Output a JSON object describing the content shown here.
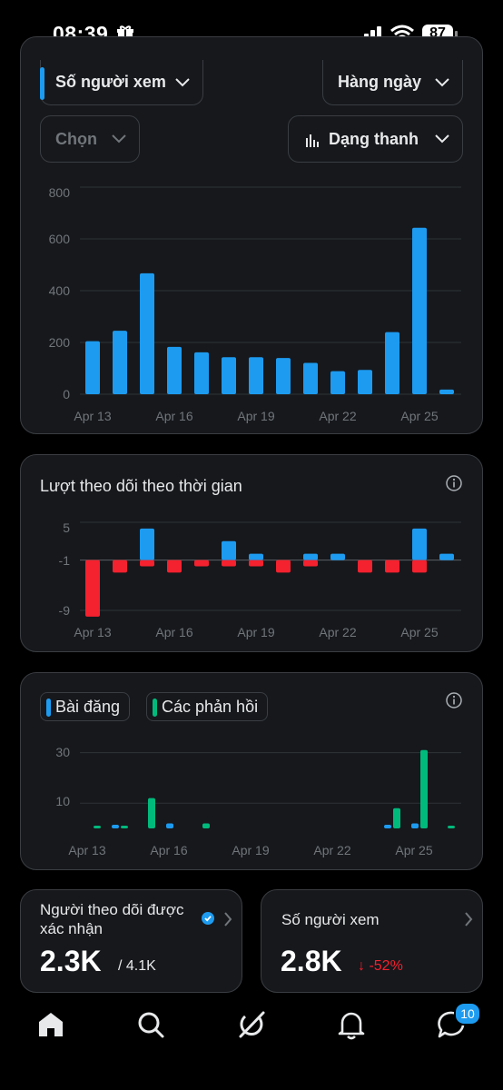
{
  "status_bar": {
    "time": "08:39",
    "battery": "87"
  },
  "views_card": {
    "metric_select": "Số người xem",
    "period_select": "Hàng ngày",
    "compare_select": "Chọn",
    "chart_type_select": "Dạng thanh"
  },
  "followers_card": {
    "title": "Lượt theo dõi theo thời gian"
  },
  "posts_card": {
    "legend_posts": "Bài đăng",
    "legend_replies": "Các phản hồi"
  },
  "stats": {
    "verified_followers_label": "Người theo dõi được xác nhận",
    "verified_followers_value": "2.3K",
    "verified_followers_total": "/ 4.1K",
    "views_label": "Số người xem",
    "views_value": "2.8K",
    "views_change": "↓ -52%"
  },
  "nav": {
    "messages_badge": "10"
  },
  "colors": {
    "accent": "#1d9bf0",
    "negative": "#f4212e",
    "replies": "#00ba7c"
  },
  "chart_data": [
    {
      "type": "bar",
      "x_ticks": [
        "Apr 13",
        "Apr 16",
        "Apr 19",
        "Apr 22",
        "Apr 25"
      ],
      "y_ticks": [
        "800",
        "600",
        "400",
        "200",
        "0"
      ],
      "ylim": [
        0,
        800
      ],
      "series": [
        {
          "values": [
            205,
            245,
            467,
            183,
            162,
            143,
            143,
            140,
            121,
            89,
            94,
            240,
            643,
            18
          ]
        }
      ]
    },
    {
      "type": "bar",
      "x_ticks": [
        "Apr 13",
        "Apr 16",
        "Apr 19",
        "Apr 22",
        "Apr 25"
      ],
      "y_ticks": [
        "5",
        "-1",
        "-9"
      ],
      "ylim": [
        -9,
        5
      ],
      "series": [
        {
          "values": [
            0,
            0,
            5,
            0,
            0,
            3,
            1,
            0,
            1,
            1,
            0,
            0,
            5,
            1
          ]
        },
        {
          "values": [
            -9,
            -2,
            -1,
            -2,
            -1,
            -1,
            -1,
            -2,
            -1,
            0,
            -2,
            -2,
            -2,
            0
          ]
        }
      ]
    },
    {
      "type": "bar",
      "x_ticks": [
        "Apr 13",
        "Apr 16",
        "Apr 19",
        "Apr 22",
        "Apr 25"
      ],
      "y_ticks": [
        "30",
        "10"
      ],
      "ylim": [
        0,
        30
      ],
      "series": [
        {
          "name": "Bài đăng",
          "values": [
            0,
            0.5,
            0,
            2,
            0,
            0,
            0,
            0,
            0,
            0,
            0,
            1,
            2,
            0
          ]
        },
        {
          "name": "Các phản hồi",
          "values": [
            1,
            1,
            12,
            0,
            2,
            0,
            0,
            0,
            0,
            0,
            0,
            8,
            31,
            1
          ]
        }
      ]
    }
  ]
}
